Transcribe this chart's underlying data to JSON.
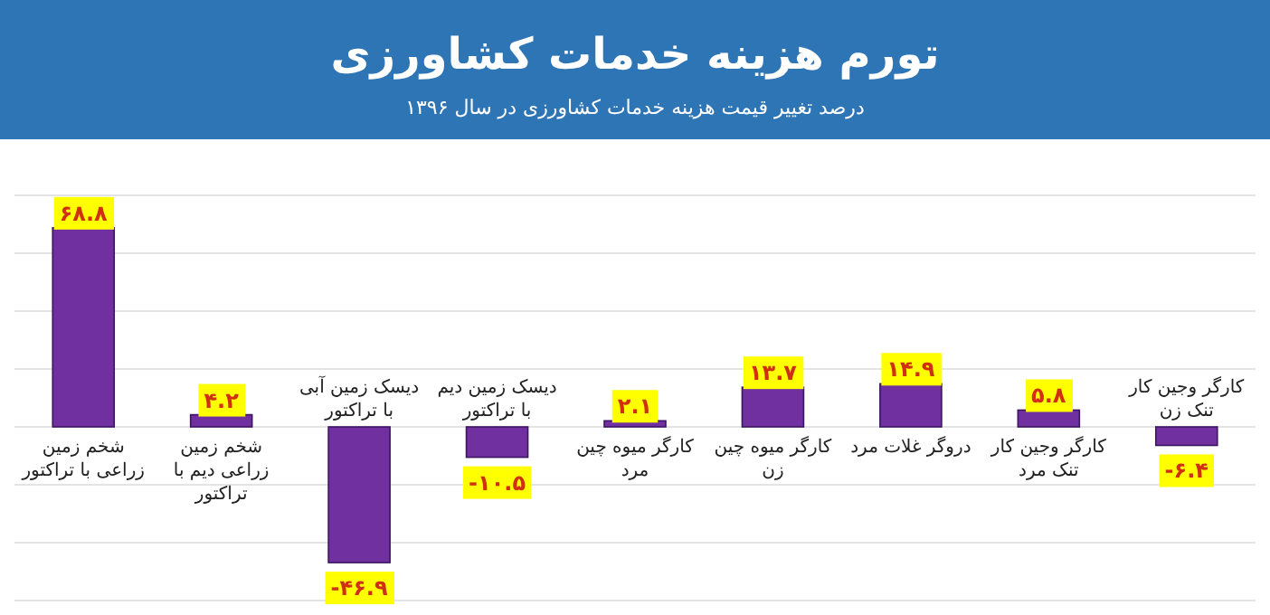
{
  "chart_data": {
    "type": "bar",
    "title": "تورم هزینه خدمات کشاورزی",
    "subtitle": "درصد تغییر قیمت هزینه خدمات کشاورزی در سال ۱۳۹۶",
    "categories": [
      "شخم زمین زراعی با تراکتور",
      "شخم زمین زراعی دیم با تراکتور",
      "دیسک زمین آبی با تراکتور",
      "دیسک زمین دیم با تراکتور",
      "کارگر میوه چین مرد",
      "کارگر میوه چین زن",
      "دروگر غلات مرد",
      "کارگر وجین کار تنک مرد",
      "کارگر وجین کار تنک زن"
    ],
    "values": [
      68.8,
      4.2,
      -46.9,
      -10.5,
      2.1,
      13.7,
      14.9,
      5.8,
      -6.4
    ],
    "value_labels": [
      "۶۸.۸",
      "۴.۲",
      "-۴۶.۹",
      "-۱۰.۵",
      "۲.۱",
      "۱۳.۷",
      "۱۴.۹",
      "۵.۸",
      "-۶.۴"
    ],
    "color": "#7030a0",
    "ylim": [
      -60,
      80
    ],
    "yticks": [
      {
        "value": -60,
        "label": null
      },
      {
        "value": -40,
        "label": null
      },
      {
        "value": -20,
        "label": null
      },
      {
        "value": 0,
        "label": null
      },
      {
        "value": 20,
        "label": null
      },
      {
        "value": 40,
        "label": null
      },
      {
        "value": 60,
        "label": null
      },
      {
        "value": 80,
        "label": null
      }
    ],
    "tick_labels": "x",
    "grid": "y"
  }
}
